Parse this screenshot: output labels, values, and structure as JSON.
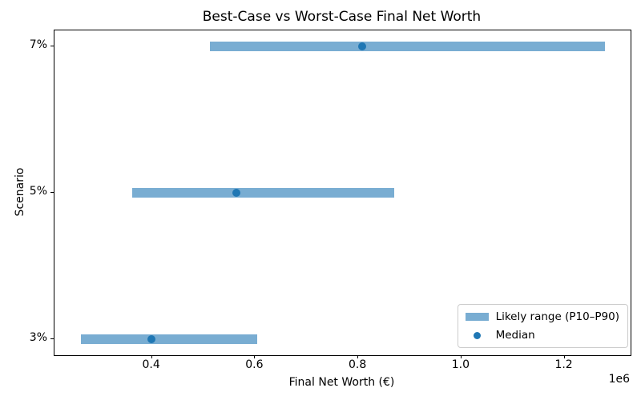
{
  "chart_data": {
    "type": "bar",
    "subtype": "horizontal-range-plot",
    "title": "Best-Case vs Worst-Case Final Net Worth",
    "xlabel": "Final Net Worth (€)",
    "ylabel": "Scenario",
    "categories": [
      "7%",
      "5%",
      "3%"
    ],
    "rows": [
      {
        "scenario": "7%",
        "p10": 512000,
        "median": 807000,
        "p90": 1278000
      },
      {
        "scenario": "5%",
        "p10": 362000,
        "median": 563000,
        "p90": 869000
      },
      {
        "scenario": "3%",
        "p10": 262000,
        "median": 399000,
        "p90": 604000
      }
    ],
    "series": [
      {
        "name": "P10 (likely range low)",
        "values": [
          512000,
          362000,
          262000
        ]
      },
      {
        "name": "Median",
        "values": [
          807000,
          563000,
          399000
        ]
      },
      {
        "name": "P90 (likely range high)",
        "values": [
          1278000,
          869000,
          604000
        ]
      }
    ],
    "xlim": [
      211000,
      1328000
    ],
    "x_ticks": [
      400000,
      600000,
      800000,
      1000000,
      1200000
    ],
    "x_tick_labels": [
      "0.4",
      "0.6",
      "0.8",
      "1.0",
      "1.2"
    ],
    "x_scale_note": "1e6",
    "legend": [
      "Likely range (P10–P90)",
      "Median"
    ],
    "legend_position": "lower right",
    "grid": false,
    "colors": {
      "range_fill": "#79ADD2",
      "median_dot": "#1F77B4",
      "accent": "#1F77B4",
      "spine": "#000000",
      "legend_border": "#CCCCCC"
    }
  }
}
